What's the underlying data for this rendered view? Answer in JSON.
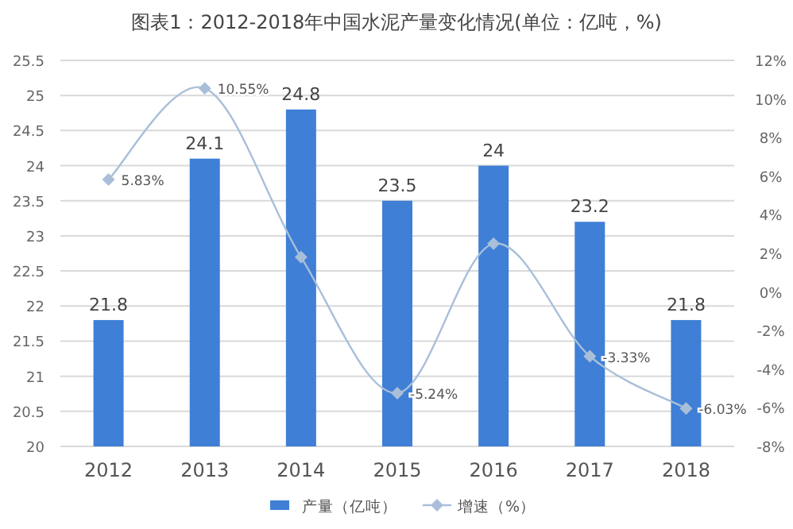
{
  "chart_data": {
    "type": "bar",
    "title": "图表1：2012-2018年中国水泥产量变化情况(单位：亿吨，%)",
    "categories": [
      "2012",
      "2013",
      "2014",
      "2015",
      "2016",
      "2017",
      "2018"
    ],
    "series": [
      {
        "name": "产量（亿吨）",
        "color": "#3f7fd6",
        "values": [
          21.8,
          24.1,
          24.8,
          23.5,
          24,
          23.2,
          21.8
        ],
        "data_labels": true
      },
      {
        "name": "增速（%）",
        "type": "line",
        "axis": "y2",
        "color": "#a9bfd9",
        "marker": "diamond",
        "values": [
          5.83,
          10.55,
          1.8,
          -5.24,
          2.5,
          -3.33,
          -6.03
        ],
        "value_labels": [
          "5.83%",
          "10.55%",
          null,
          "-5.24%",
          null,
          "-3.33%",
          "-6.03%"
        ]
      }
    ],
    "ylim": [
      20,
      25.5
    ],
    "yticks": [
      20,
      20.5,
      21,
      21.5,
      22,
      22.5,
      23,
      23.5,
      24,
      24.5,
      25,
      25.5
    ],
    "y2lim": [
      -8,
      12
    ],
    "y2ticks": [
      {
        "value": -8,
        "label": "-8%"
      },
      {
        "value": -6,
        "label": "-6%"
      },
      {
        "value": -4,
        "label": "-4%"
      },
      {
        "value": -2,
        "label": "-2%"
      },
      {
        "value": 0,
        "label": "0%"
      },
      {
        "value": 2,
        "label": "2%"
      },
      {
        "value": 4,
        "label": "4%"
      },
      {
        "value": 6,
        "label": "6%"
      },
      {
        "value": 8,
        "label": "8%"
      },
      {
        "value": 10,
        "label": "10%"
      },
      {
        "value": 12,
        "label": "12%"
      }
    ],
    "grid": "y",
    "legend": "bottom"
  }
}
